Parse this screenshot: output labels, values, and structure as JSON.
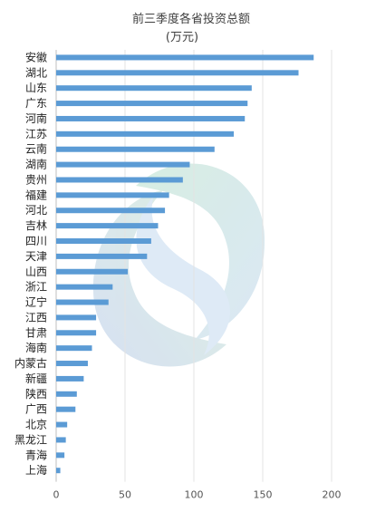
{
  "chart_data": {
    "type": "bar",
    "orientation": "horizontal",
    "title": "前三季度各省投资总额",
    "subtitle": "(万元)",
    "xlim": [
      0,
      200
    ],
    "xticks": [
      0,
      50,
      100,
      150,
      200
    ],
    "grid": true,
    "legend": "none",
    "bar_color": "#5b9bd5",
    "categories": [
      "安徽",
      "湖北",
      "山东",
      "广东",
      "河南",
      "江苏",
      "云南",
      "湖南",
      "贵州",
      "福建",
      "河北",
      "吉林",
      "四川",
      "天津",
      "山西",
      "浙江",
      "辽宁",
      "江西",
      "甘肃",
      "海南",
      "内蒙古",
      "新疆",
      "陕西",
      "广西",
      "北京",
      "黑龙江",
      "青海",
      "上海"
    ],
    "values": [
      187,
      176,
      142,
      139,
      137,
      129,
      115,
      97,
      92,
      82,
      79,
      74,
      69,
      66,
      52,
      41,
      38,
      29,
      29,
      26,
      23,
      20,
      15,
      14,
      8,
      7,
      6,
      3
    ]
  }
}
